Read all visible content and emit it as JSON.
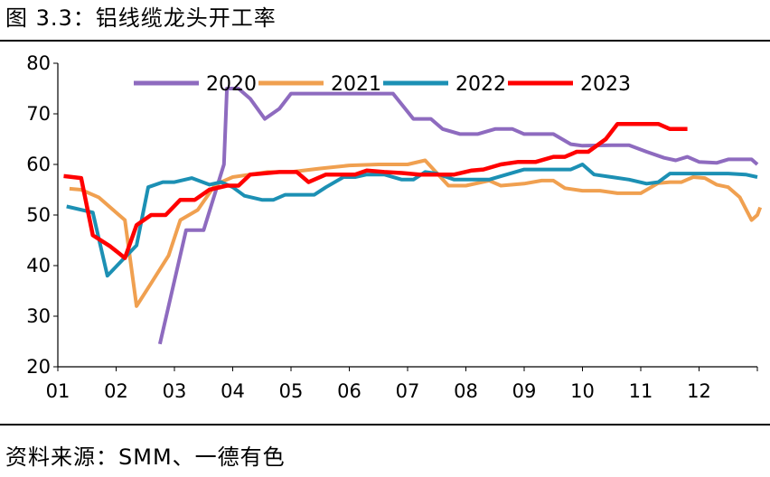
{
  "figure": {
    "title": "图 3.3：铝线缆龙头开工率",
    "source": "资料来源：SMM、一德有色"
  },
  "chart_data": {
    "type": "line",
    "title": "铝线缆龙头开工率",
    "xlabel": "",
    "ylabel": "",
    "x_tick_labels": [
      "01",
      "02",
      "03",
      "04",
      "05",
      "06",
      "07",
      "08",
      "09",
      "10",
      "11",
      "12"
    ],
    "y_ticks": [
      20,
      30,
      40,
      50,
      60,
      70,
      80
    ],
    "xlim": [
      1,
      13
    ],
    "ylim": [
      20,
      80
    ],
    "grid": false,
    "legend_position": "top",
    "series": [
      {
        "name": "2020",
        "color": "#8e6bbf",
        "points": [
          [
            2.75,
            24.5
          ],
          [
            3.0,
            37
          ],
          [
            3.2,
            47
          ],
          [
            3.5,
            47
          ],
          [
            3.85,
            60
          ],
          [
            3.9,
            75
          ],
          [
            4.1,
            75
          ],
          [
            4.3,
            73
          ],
          [
            4.55,
            69
          ],
          [
            4.8,
            71
          ],
          [
            5.0,
            74
          ],
          [
            5.5,
            74
          ],
          [
            6.0,
            74
          ],
          [
            6.5,
            74
          ],
          [
            6.75,
            74
          ],
          [
            7.1,
            69
          ],
          [
            7.4,
            69
          ],
          [
            7.6,
            67
          ],
          [
            7.9,
            66
          ],
          [
            8.2,
            66
          ],
          [
            8.5,
            67
          ],
          [
            8.8,
            67
          ],
          [
            9.0,
            66
          ],
          [
            9.5,
            66
          ],
          [
            9.8,
            64
          ],
          [
            10.0,
            63.7
          ],
          [
            10.5,
            63.8
          ],
          [
            10.8,
            63.8
          ],
          [
            11.1,
            62.5
          ],
          [
            11.4,
            61.3
          ],
          [
            11.6,
            60.8
          ],
          [
            11.8,
            61.5
          ],
          [
            12.0,
            60.5
          ],
          [
            12.3,
            60.3
          ],
          [
            12.5,
            61
          ],
          [
            12.8,
            61
          ],
          [
            12.9,
            61
          ],
          [
            13.0,
            60
          ]
        ]
      },
      {
        "name": "2021",
        "color": "#f0a050",
        "points": [
          [
            1.2,
            55.2
          ],
          [
            1.4,
            55
          ],
          [
            1.7,
            53.5
          ],
          [
            2.0,
            50.5
          ],
          [
            2.15,
            49
          ],
          [
            2.35,
            32
          ],
          [
            2.6,
            36.5
          ],
          [
            2.9,
            42
          ],
          [
            3.1,
            49
          ],
          [
            3.4,
            51
          ],
          [
            3.7,
            56
          ],
          [
            4.0,
            57.5
          ],
          [
            4.3,
            58
          ],
          [
            4.6,
            58.5
          ],
          [
            5.0,
            58.5
          ],
          [
            5.5,
            59.2
          ],
          [
            6.0,
            59.8
          ],
          [
            6.5,
            60
          ],
          [
            7.0,
            60
          ],
          [
            7.3,
            60.8
          ],
          [
            7.7,
            55.8
          ],
          [
            8.0,
            55.8
          ],
          [
            8.4,
            56.8
          ],
          [
            8.6,
            55.8
          ],
          [
            9.0,
            56.2
          ],
          [
            9.3,
            56.8
          ],
          [
            9.5,
            56.8
          ],
          [
            9.7,
            55.3
          ],
          [
            10.0,
            54.8
          ],
          [
            10.3,
            54.8
          ],
          [
            10.6,
            54.3
          ],
          [
            11.0,
            54.3
          ],
          [
            11.3,
            56.3
          ],
          [
            11.5,
            56.5
          ],
          [
            11.7,
            56.5
          ],
          [
            11.9,
            57.5
          ],
          [
            12.1,
            57.3
          ],
          [
            12.3,
            56
          ],
          [
            12.5,
            55.5
          ],
          [
            12.7,
            53.5
          ],
          [
            12.9,
            49
          ],
          [
            13.0,
            50
          ],
          [
            13.05,
            51.5
          ]
        ]
      },
      {
        "name": "2022",
        "color": "#1c90b4",
        "points": [
          [
            1.15,
            51.7
          ],
          [
            1.6,
            50.5
          ],
          [
            1.85,
            38
          ],
          [
            2.1,
            41
          ],
          [
            2.35,
            44
          ],
          [
            2.55,
            55.5
          ],
          [
            2.8,
            56.5
          ],
          [
            3.0,
            56.5
          ],
          [
            3.3,
            57.3
          ],
          [
            3.6,
            56
          ],
          [
            3.8,
            56.5
          ],
          [
            4.0,
            55.5
          ],
          [
            4.2,
            53.8
          ],
          [
            4.5,
            53
          ],
          [
            4.7,
            53
          ],
          [
            4.9,
            54
          ],
          [
            5.2,
            54
          ],
          [
            5.4,
            54
          ],
          [
            5.6,
            55.5
          ],
          [
            5.9,
            57.5
          ],
          [
            6.1,
            57.5
          ],
          [
            6.3,
            58
          ],
          [
            6.6,
            58
          ],
          [
            6.9,
            57
          ],
          [
            7.1,
            57
          ],
          [
            7.3,
            58.5
          ],
          [
            7.5,
            58.2
          ],
          [
            7.8,
            57
          ],
          [
            8.1,
            57
          ],
          [
            8.4,
            57
          ],
          [
            8.7,
            58
          ],
          [
            9.0,
            59
          ],
          [
            9.5,
            59
          ],
          [
            9.8,
            59
          ],
          [
            10.0,
            60
          ],
          [
            10.2,
            58
          ],
          [
            10.5,
            57.5
          ],
          [
            10.8,
            57
          ],
          [
            11.1,
            56.2
          ],
          [
            11.3,
            56.5
          ],
          [
            11.5,
            58.2
          ],
          [
            11.8,
            58.2
          ],
          [
            12.0,
            58.2
          ],
          [
            12.3,
            58.2
          ],
          [
            12.5,
            58.2
          ],
          [
            12.8,
            58
          ],
          [
            13.0,
            57.5
          ]
        ]
      },
      {
        "name": "2023",
        "color": "#ff0000",
        "points": [
          [
            1.1,
            57.7
          ],
          [
            1.4,
            57.3
          ],
          [
            1.6,
            46
          ],
          [
            1.9,
            43.8
          ],
          [
            2.15,
            41.5
          ],
          [
            2.35,
            48
          ],
          [
            2.6,
            50
          ],
          [
            2.85,
            50
          ],
          [
            3.1,
            53
          ],
          [
            3.35,
            53
          ],
          [
            3.6,
            55
          ],
          [
            3.9,
            55.8
          ],
          [
            4.1,
            55.8
          ],
          [
            4.3,
            58
          ],
          [
            4.5,
            58.2
          ],
          [
            4.8,
            58.5
          ],
          [
            5.1,
            58.5
          ],
          [
            5.3,
            56.5
          ],
          [
            5.6,
            58
          ],
          [
            5.9,
            58
          ],
          [
            6.1,
            58
          ],
          [
            6.3,
            58.8
          ],
          [
            6.6,
            58.5
          ],
          [
            6.9,
            58.3
          ],
          [
            7.2,
            58
          ],
          [
            7.5,
            58
          ],
          [
            7.8,
            58
          ],
          [
            8.1,
            58.8
          ],
          [
            8.3,
            59
          ],
          [
            8.6,
            60
          ],
          [
            8.9,
            60.5
          ],
          [
            9.2,
            60.5
          ],
          [
            9.5,
            61.5
          ],
          [
            9.7,
            61.5
          ],
          [
            9.9,
            62.5
          ],
          [
            10.1,
            62.5
          ],
          [
            10.4,
            65
          ],
          [
            10.6,
            68
          ],
          [
            10.9,
            68
          ],
          [
            11.1,
            68
          ],
          [
            11.3,
            68
          ],
          [
            11.5,
            67
          ],
          [
            11.8,
            67
          ]
        ]
      }
    ]
  }
}
